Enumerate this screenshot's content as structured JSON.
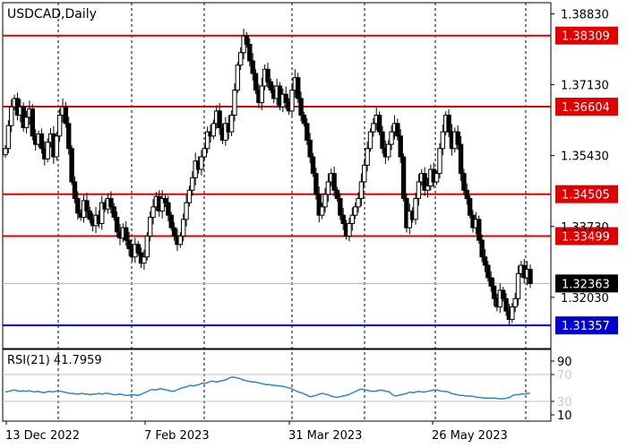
{
  "chart_data": {
    "type": "candlestick",
    "title": "USDCAD,Daily",
    "price_axis": {
      "ylim": [
        1.3121,
        1.38883
      ],
      "tick_labels": [
        "1.38830",
        "1.37130",
        "1.35430",
        "1.33730",
        "1.32030"
      ],
      "tick_values": [
        1.3883,
        1.3713,
        1.3543,
        1.3373,
        1.3203
      ]
    },
    "current_price": {
      "label": "1.32363",
      "value": 1.32363,
      "color": "#000000"
    },
    "levels": [
      {
        "label": "1.38309",
        "value": 1.38309,
        "color": "#e00000"
      },
      {
        "label": "1.36604",
        "value": 1.36604,
        "color": "#e00000"
      },
      {
        "label": "1.34505",
        "value": 1.34505,
        "color": "#e00000"
      },
      {
        "label": "1.33499",
        "value": 1.33499,
        "color": "#e00000"
      },
      {
        "label": "1.31357",
        "value": 1.31357,
        "color": "#0000d0"
      }
    ],
    "date_labels": [
      "13 Dec 2022",
      "7 Feb 2023",
      "31 Mar 2023",
      "26 May 2023"
    ],
    "close": [
      1.356,
      1.3615,
      1.366,
      1.368,
      1.364,
      1.366,
      1.361,
      1.3635,
      1.3655,
      1.359,
      1.357,
      1.3595,
      1.356,
      1.3535,
      1.3575,
      1.3595,
      1.354,
      1.359,
      1.364,
      1.366,
      1.362,
      1.356,
      1.348,
      1.344,
      1.3405,
      1.3395,
      1.3435,
      1.341,
      1.339,
      1.3375,
      1.34,
      1.338,
      1.343,
      1.3415,
      1.344,
      1.342,
      1.3395,
      1.336,
      1.3345,
      1.337,
      1.334,
      1.332,
      1.33,
      1.333,
      1.331,
      1.3285,
      1.33,
      1.335,
      1.3395,
      1.342,
      1.3445,
      1.341,
      1.344,
      1.343,
      1.34,
      1.337,
      1.335,
      1.333,
      1.335,
      1.339,
      1.343,
      1.346,
      1.349,
      1.353,
      1.351,
      1.354,
      1.356,
      1.36,
      1.359,
      1.362,
      1.365,
      1.361,
      1.358,
      1.362,
      1.36,
      1.364,
      1.37,
      1.376,
      1.379,
      1.383,
      1.381,
      1.377,
      1.374,
      1.37,
      1.367,
      1.371,
      1.375,
      1.372,
      1.37,
      1.368,
      1.371,
      1.366,
      1.369,
      1.367,
      1.365,
      1.37,
      1.373,
      1.368,
      1.364,
      1.362,
      1.358,
      1.354,
      1.35,
      1.345,
      1.34,
      1.342,
      1.345,
      1.348,
      1.35,
      1.346,
      1.344,
      1.34,
      1.338,
      1.335,
      1.338,
      1.34,
      1.342,
      1.344,
      1.348,
      1.352,
      1.356,
      1.36,
      1.362,
      1.364,
      1.36,
      1.356,
      1.354,
      1.357,
      1.36,
      1.362,
      1.359,
      1.354,
      1.344,
      1.337,
      1.341,
      1.339,
      1.344,
      1.348,
      1.35,
      1.346,
      1.347,
      1.351,
      1.348,
      1.35,
      1.356,
      1.36,
      1.364,
      1.36,
      1.356,
      1.36,
      1.357,
      1.35,
      1.346,
      1.344,
      1.34,
      1.337,
      1.339,
      1.334,
      1.33,
      1.328,
      1.325,
      1.323,
      1.32,
      1.318,
      1.322,
      1.32,
      1.317,
      1.315,
      1.318,
      1.32,
      1.326,
      1.328,
      1.325,
      1.327,
      1.3236
    ]
  },
  "rsi": {
    "label": "RSI(21) 41.7959",
    "scale_labels": [
      "90",
      "70",
      "30",
      "10"
    ],
    "scale_values": [
      90,
      70,
      30,
      10
    ],
    "values": [
      44,
      45,
      46,
      47,
      46,
      45,
      46,
      45,
      46,
      45,
      44,
      45,
      44,
      43,
      44,
      45,
      44,
      45,
      46,
      45,
      44,
      43,
      42,
      42,
      41,
      41,
      42,
      41,
      41,
      40,
      41,
      41,
      42,
      41,
      42,
      42,
      41,
      40,
      40,
      41,
      40,
      39,
      39,
      40,
      40,
      39,
      40,
      42,
      44,
      46,
      48,
      47,
      48,
      49,
      48,
      47,
      46,
      45,
      46,
      48,
      50,
      51,
      52,
      54,
      53,
      54,
      55,
      57,
      57,
      58,
      60,
      60,
      59,
      60,
      61,
      62,
      64,
      66,
      66,
      65,
      64,
      62,
      61,
      60,
      59,
      59,
      58,
      57,
      56,
      55,
      55,
      54,
      54,
      53,
      53,
      52,
      51,
      50,
      48,
      46,
      44,
      43,
      41,
      39,
      37,
      38,
      39,
      41,
      42,
      41,
      40,
      38,
      37,
      36,
      37,
      38,
      39,
      40,
      42,
      44,
      46,
      48,
      48,
      47,
      46,
      45,
      45,
      46,
      47,
      46,
      45,
      44,
      40,
      38,
      39,
      40,
      41,
      42,
      44,
      43,
      44,
      45,
      44,
      44,
      45,
      46,
      47,
      47,
      46,
      45,
      45,
      44,
      42,
      41,
      40,
      39,
      39,
      38,
      38,
      38,
      37,
      36,
      36,
      35,
      35,
      35,
      35,
      35,
      34,
      34,
      34,
      35,
      36,
      39,
      40,
      40,
      41,
      41,
      42,
      42
    ],
    "line_color": "#2e86c1"
  }
}
